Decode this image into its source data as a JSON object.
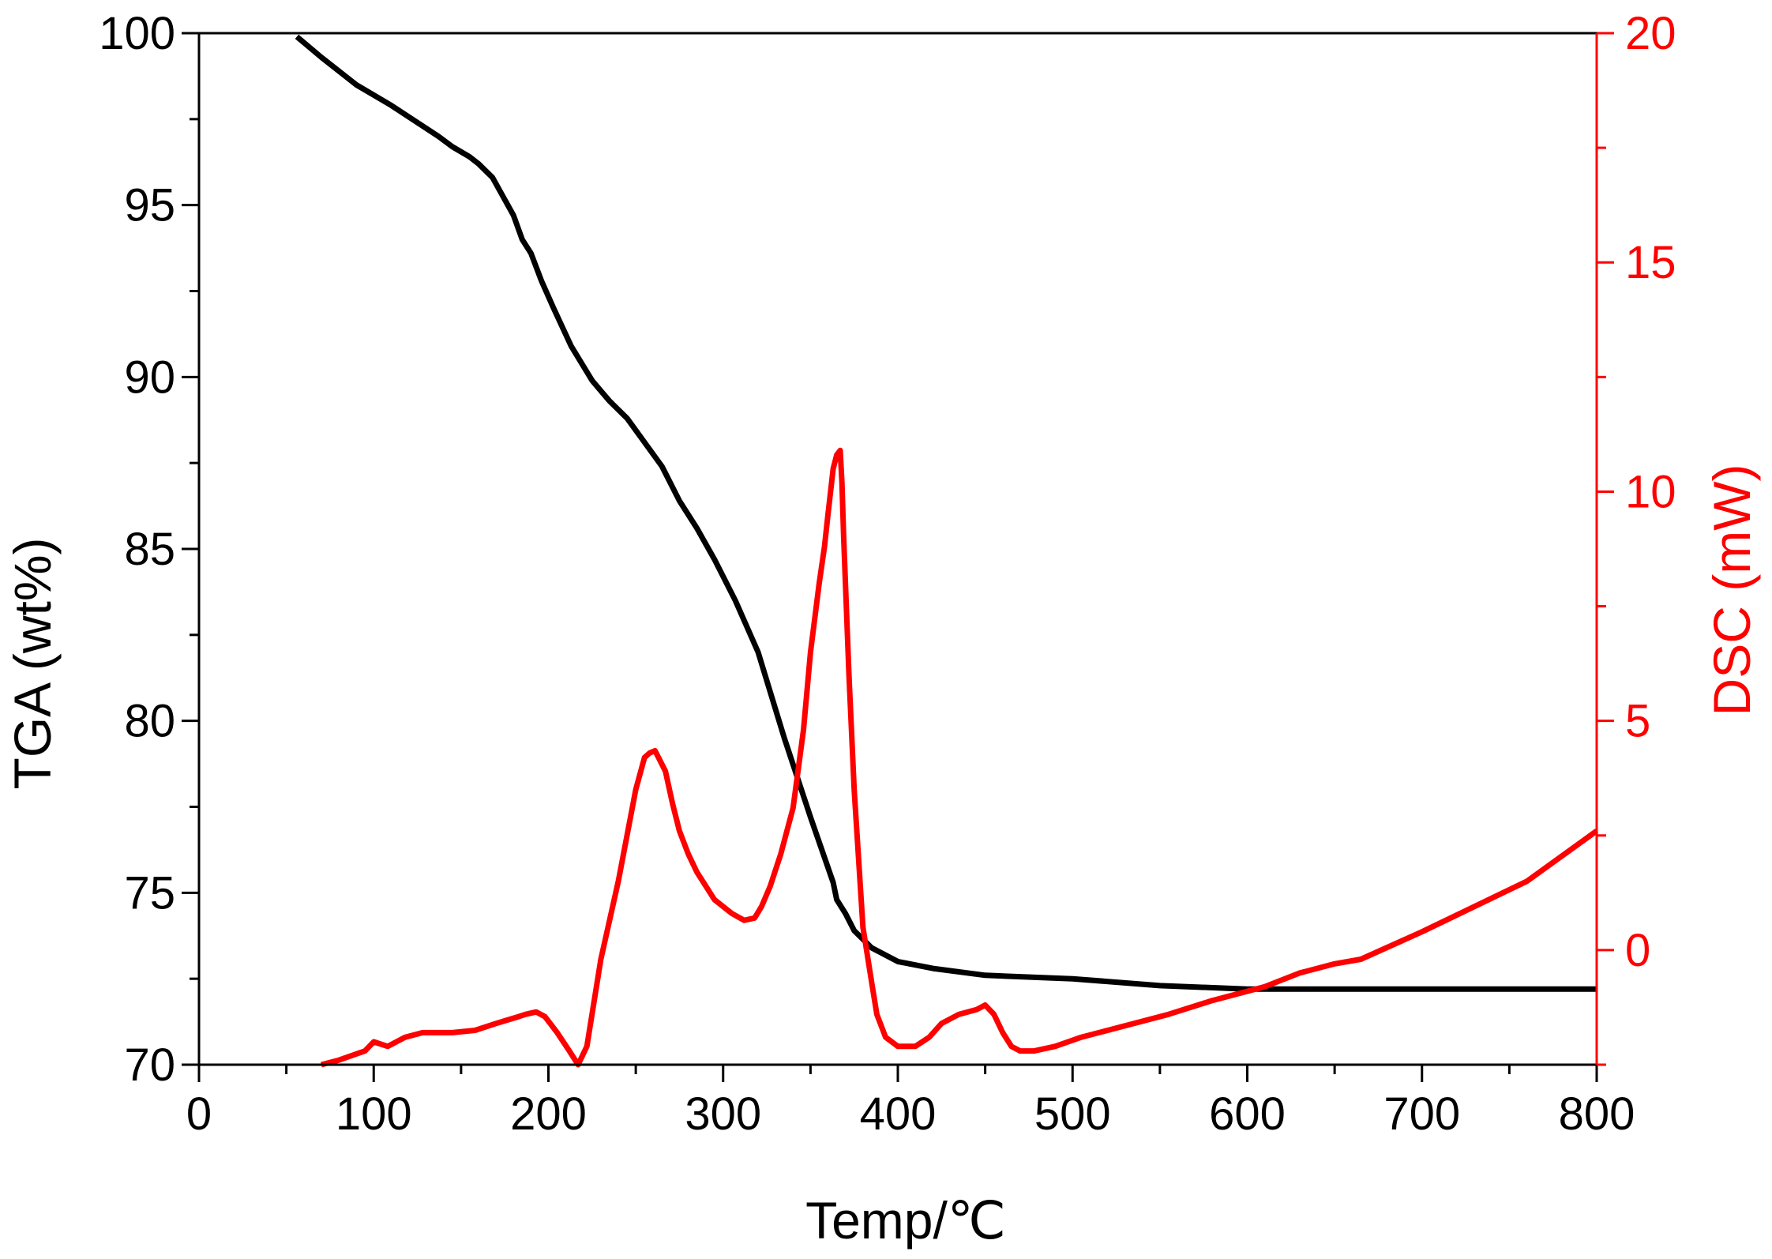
{
  "chart_data": {
    "type": "line",
    "xlabel": "Temp/℃",
    "ylabel": "TGA (wt%)",
    "y2label": "DSC (mW)",
    "xlim": [
      0,
      800
    ],
    "ylim": [
      70,
      100
    ],
    "y2lim": [
      -2.5,
      20
    ],
    "x_ticks": [
      "0",
      "100",
      "200",
      "300",
      "400",
      "500",
      "600",
      "700",
      "800"
    ],
    "y_ticks": [
      "70",
      "75",
      "80",
      "85",
      "90",
      "95",
      "100"
    ],
    "y2_ticks": [
      "0",
      "5",
      "10",
      "15",
      "20"
    ],
    "grid": false,
    "colors": {
      "tga": "#000000",
      "dsc": "#ff0000",
      "axis_left": "#000000",
      "axis_right": "#ff0000"
    },
    "series": [
      {
        "axis": "left",
        "x": [
          56,
          70,
          90,
          110,
          125,
          137,
          145,
          155,
          160,
          168,
          180,
          185,
          190,
          196,
          203,
          213,
          225,
          235,
          245,
          255,
          265,
          275,
          285,
          295,
          307,
          320,
          335,
          350,
          363,
          365,
          370,
          375,
          385,
          400,
          420,
          450,
          500,
          550,
          600,
          630,
          700,
          800
        ],
        "y": [
          99.9,
          99.3,
          98.5,
          97.9,
          97.4,
          97.0,
          96.7,
          96.4,
          96.2,
          95.8,
          94.7,
          94.0,
          93.6,
          92.8,
          92.0,
          90.9,
          89.9,
          89.3,
          88.8,
          88.1,
          87.4,
          86.4,
          85.6,
          84.7,
          83.5,
          82.0,
          79.5,
          77.2,
          75.3,
          74.8,
          74.4,
          73.9,
          73.4,
          73.0,
          72.8,
          72.6,
          72.5,
          72.3,
          72.2,
          72.2,
          72.2,
          72.2
        ]
      },
      {
        "axis": "right",
        "x": [
          70,
          80,
          95,
          100,
          108,
          118,
          128,
          145,
          158,
          170,
          183,
          187,
          193,
          198,
          205,
          212,
          217,
          222,
          230,
          240,
          250,
          255,
          258,
          261,
          263,
          267,
          271,
          275,
          280,
          285,
          295,
          305,
          312,
          318,
          322,
          327,
          333,
          340,
          346,
          350,
          355,
          358,
          360,
          363,
          365,
          367,
          368,
          369,
          372,
          375,
          380,
          385,
          388,
          393,
          400,
          410,
          418,
          425,
          435,
          445,
          450,
          455,
          460,
          465,
          470,
          478,
          490,
          505,
          525,
          555,
          580,
          610,
          630,
          650,
          665,
          700,
          760,
          800
        ],
        "y": [
          -2.5,
          -2.4,
          -2.2,
          -2.0,
          -2.1,
          -1.9,
          -1.8,
          -1.8,
          -1.75,
          -1.6,
          -1.45,
          -1.4,
          -1.35,
          -1.45,
          -1.8,
          -2.2,
          -2.5,
          -2.1,
          -0.2,
          1.5,
          3.5,
          4.2,
          4.3,
          4.35,
          4.2,
          3.9,
          3.2,
          2.6,
          2.1,
          1.7,
          1.1,
          0.8,
          0.65,
          0.7,
          0.95,
          1.4,
          2.1,
          3.1,
          4.8,
          6.5,
          8.0,
          8.8,
          9.5,
          10.5,
          10.8,
          10.9,
          10.2,
          9.0,
          6.0,
          3.5,
          0.5,
          -0.7,
          -1.4,
          -1.9,
          -2.1,
          -2.1,
          -1.9,
          -1.6,
          -1.4,
          -1.3,
          -1.2,
          -1.4,
          -1.8,
          -2.1,
          -2.2,
          -2.2,
          -2.1,
          -1.9,
          -1.7,
          -1.4,
          -1.1,
          -0.8,
          -0.5,
          -0.3,
          -0.2,
          0.4,
          1.5,
          2.6
        ]
      }
    ]
  }
}
